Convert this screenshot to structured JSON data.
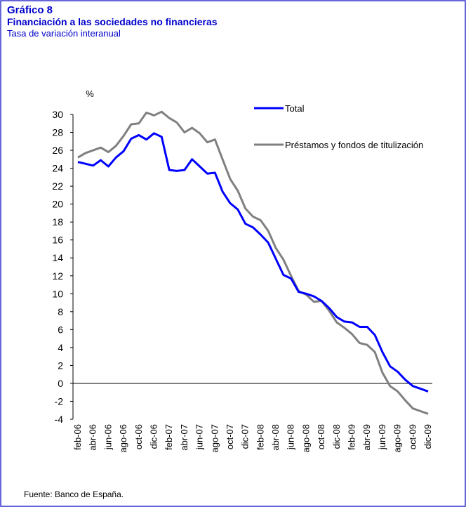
{
  "chart_data": {
    "type": "line",
    "title": "Gráfico 8",
    "subtitle": "Financiación a las sociedades no financieras",
    "description": "Tasa de variación interanual",
    "y_label": "%",
    "source": "Fuente: Banco de España.",
    "categories": [
      "feb-06",
      null,
      "abr-06",
      null,
      "jun-06",
      null,
      "ago-06",
      null,
      "oct-06",
      null,
      "dic-06",
      null,
      "feb-07",
      null,
      "abr-07",
      null,
      "jun-07",
      null,
      "ago-07",
      null,
      "oct-07",
      null,
      "dic-07",
      null,
      "feb-08",
      null,
      "abr-08",
      null,
      "jun-08",
      null,
      "ago-08",
      null,
      "oct-08",
      null,
      "dic-08",
      null,
      "feb-09",
      null,
      "abr-09",
      null,
      "jun-09",
      null,
      "ago-09",
      null,
      "oct-09",
      null,
      "dic-09"
    ],
    "series": [
      {
        "name": "Total",
        "color": "#0000ff",
        "values": [
          24.7,
          24.5,
          24.3,
          24.9,
          24.2,
          25.2,
          25.9,
          27.3,
          27.7,
          27.2,
          27.9,
          27.5,
          23.8,
          23.7,
          23.8,
          25.0,
          24.2,
          23.4,
          23.5,
          21.4,
          20.1,
          19.4,
          17.8,
          17.4,
          16.6,
          15.7,
          13.9,
          12.1,
          11.7,
          10.2,
          10.0,
          9.7,
          9.2,
          8.4,
          7.4,
          6.9,
          6.8,
          6.3,
          6.3,
          5.4,
          3.5,
          1.9,
          1.3,
          0.4,
          -0.3,
          -0.6,
          -0.9
        ]
      },
      {
        "name": "Préstamos y fondos de titulización",
        "color": "#808080",
        "values": [
          25.2,
          25.7,
          26.0,
          26.3,
          25.8,
          26.5,
          27.6,
          28.9,
          29.0,
          30.2,
          29.9,
          30.3,
          29.6,
          29.1,
          28.0,
          28.5,
          27.9,
          26.9,
          27.2,
          25.0,
          22.8,
          21.5,
          19.5,
          18.6,
          18.2,
          17.0,
          15.1,
          13.8,
          12.0,
          10.3,
          9.9,
          9.1,
          9.2,
          8.1,
          6.8,
          6.2,
          5.5,
          4.5,
          4.3,
          3.5,
          1.2,
          -0.3,
          -0.9,
          -1.9,
          -2.8,
          -3.1,
          -3.4
        ]
      }
    ],
    "ylim": [
      -4,
      30
    ],
    "yticks": [
      -4,
      -2,
      0,
      2,
      4,
      6,
      8,
      10,
      12,
      14,
      16,
      18,
      20,
      22,
      24,
      26,
      28,
      30
    ],
    "grid": false
  }
}
